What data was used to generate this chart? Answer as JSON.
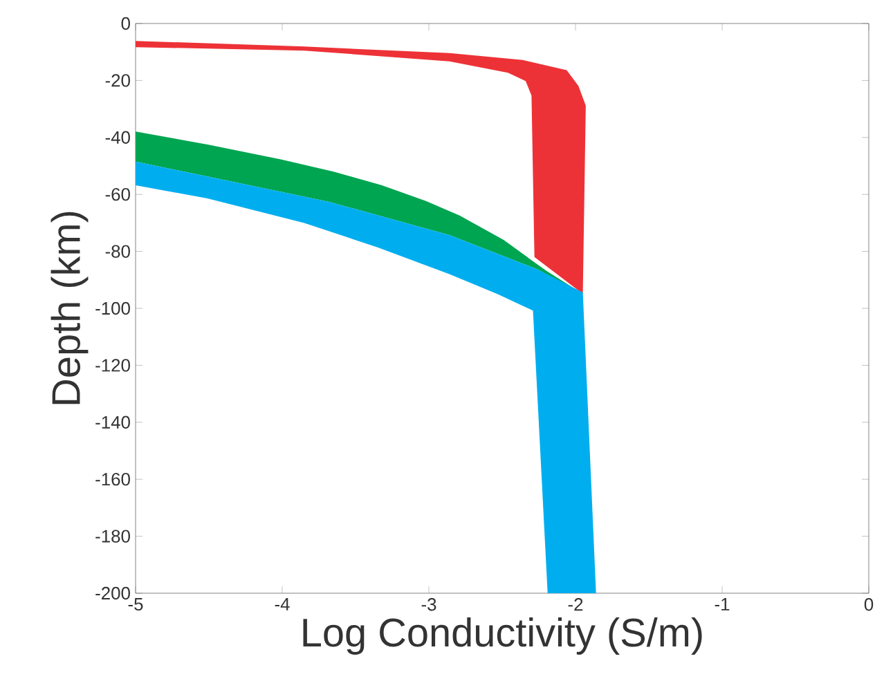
{
  "chart_data": {
    "type": "area",
    "xlabel": "Log Conductivity (S/m)",
    "ylabel": "Depth (km)",
    "xlim": [
      -5,
      0
    ],
    "ylim": [
      -200,
      0
    ],
    "xticks": [
      -5,
      -4,
      -3,
      -2,
      -1,
      0
    ],
    "yticks": [
      -200,
      -180,
      -160,
      -140,
      -120,
      -100,
      -80,
      -60,
      -40,
      -20,
      0
    ],
    "series": [
      {
        "color": "#ed3237",
        "x": [
          -5,
          -3.85,
          -2.86,
          -2.36,
          -2.06,
          -1.98,
          -1.93,
          -1.95,
          -2.28,
          -2.3,
          -2.34,
          -2.46,
          -2.86,
          -3.85,
          -5
        ],
        "values": [
          -6.1,
          -8.1,
          -10.4,
          -12.8,
          -16.4,
          -21.9,
          -28.8,
          -94.9,
          -82,
          -25.3,
          -20.2,
          -17.3,
          -13.3,
          -9.5,
          -8.3
        ]
      },
      {
        "color": "#00a551",
        "x": [
          -5,
          -4.51,
          -4.01,
          -3.65,
          -3.32,
          -3.02,
          -2.79,
          -2.49,
          -2.2,
          -1.95,
          -2.26,
          -2.86,
          -3.68,
          -4.51,
          -5
        ],
        "values": [
          -37.9,
          -42.5,
          -47.7,
          -52,
          -56.8,
          -62.3,
          -67.4,
          -76,
          -86.8,
          -94.9,
          -86.3,
          -74.3,
          -62.6,
          -53.7,
          -48.5
        ]
      },
      {
        "color": "#00aeef",
        "x": [
          -5,
          -4.51,
          -3.68,
          -2.86,
          -2.26,
          -1.95,
          -1.86,
          -2.19,
          -2.29,
          -2.53,
          -2.86,
          -3.35,
          -3.85,
          -4.51,
          -5
        ],
        "values": [
          -48.5,
          -53.7,
          -62.6,
          -74.3,
          -86.3,
          -94.4,
          -200,
          -200,
          -100.8,
          -95,
          -88,
          -78.6,
          -70,
          -61.4,
          -56.8
        ]
      }
    ]
  }
}
